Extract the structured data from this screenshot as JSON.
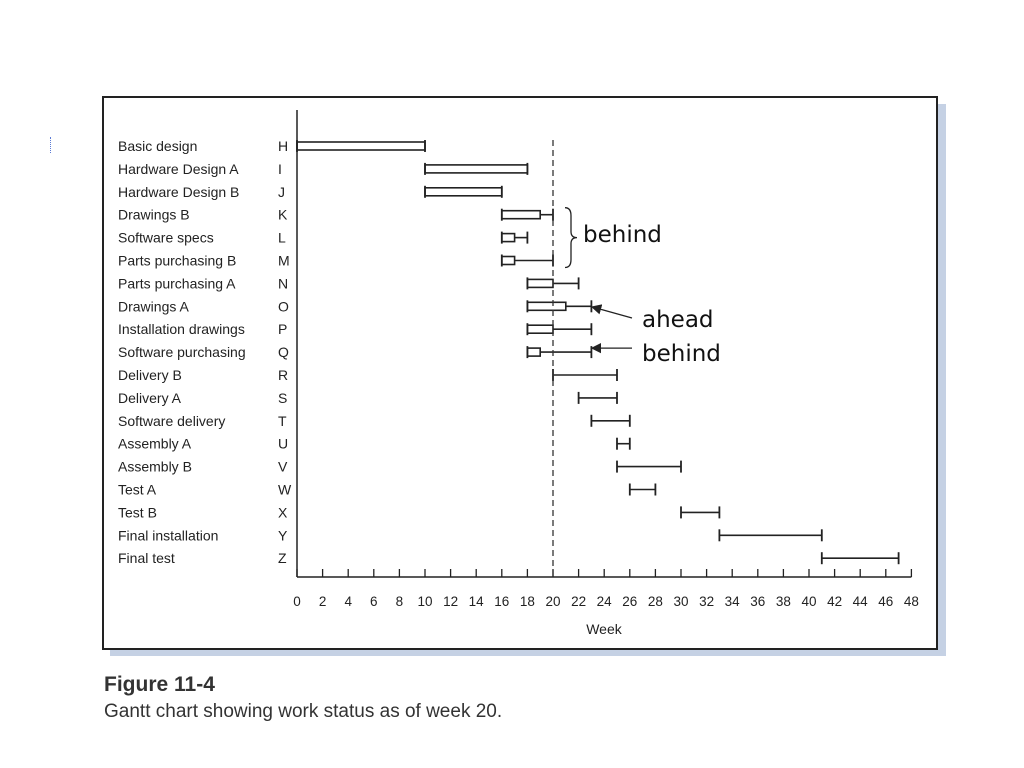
{
  "chart_data": {
    "type": "gantt",
    "xlabel": "Week",
    "xlim": [
      0,
      48
    ],
    "x_ticks": [
      0,
      2,
      4,
      6,
      8,
      10,
      12,
      14,
      16,
      18,
      20,
      22,
      24,
      26,
      28,
      30,
      32,
      34,
      36,
      38,
      40,
      42,
      44,
      46,
      48
    ],
    "status_line_week": 20,
    "tasks": [
      {
        "name": "Basic design",
        "code": "H",
        "start": 0,
        "end": 10,
        "progress_end": 10
      },
      {
        "name": "Hardware Design A",
        "code": "I",
        "start": 10,
        "end": 18,
        "progress_end": 18
      },
      {
        "name": "Hardware Design B",
        "code": "J",
        "start": 10,
        "end": 16,
        "progress_end": 16
      },
      {
        "name": "Drawings B",
        "code": "K",
        "start": 16,
        "end": 20,
        "progress_end": 19
      },
      {
        "name": "Software specs",
        "code": "L",
        "start": 16,
        "end": 18,
        "progress_end": 17
      },
      {
        "name": "Parts purchasing B",
        "code": "M",
        "start": 16,
        "end": 20,
        "progress_end": 17
      },
      {
        "name": "Parts purchasing A",
        "code": "N",
        "start": 18,
        "end": 22,
        "progress_end": 20
      },
      {
        "name": "Drawings A",
        "code": "O",
        "start": 18,
        "end": 23,
        "progress_end": 21
      },
      {
        "name": "Installation drawings",
        "code": "P",
        "start": 18,
        "end": 23,
        "progress_end": 20
      },
      {
        "name": "Software purchasing",
        "code": "Q",
        "start": 18,
        "end": 23,
        "progress_end": 19
      },
      {
        "name": "Delivery B",
        "code": "R",
        "start": 20,
        "end": 25,
        "progress_end": null
      },
      {
        "name": "Delivery A",
        "code": "S",
        "start": 22,
        "end": 25,
        "progress_end": null
      },
      {
        "name": "Software delivery",
        "code": "T",
        "start": 23,
        "end": 26,
        "progress_end": null
      },
      {
        "name": "Assembly A",
        "code": "U",
        "start": 25,
        "end": 26,
        "progress_end": null
      },
      {
        "name": "Assembly B",
        "code": "V",
        "start": 25,
        "end": 30,
        "progress_end": null
      },
      {
        "name": "Test A",
        "code": "W",
        "start": 26,
        "end": 28,
        "progress_end": null
      },
      {
        "name": "Test B",
        "code": "X",
        "start": 30,
        "end": 33,
        "progress_end": null
      },
      {
        "name": "Final installation",
        "code": "Y",
        "start": 33,
        "end": 41,
        "progress_end": null
      },
      {
        "name": "Final test",
        "code": "Z",
        "start": 41,
        "end": 47,
        "progress_end": null
      }
    ],
    "annotations": [
      {
        "text": "behind",
        "target": "brace over K, L, M"
      },
      {
        "text": "ahead",
        "target": "O"
      },
      {
        "text": "behind",
        "target": "Q"
      }
    ]
  },
  "figure": {
    "number": "Figure 11-4",
    "caption": "Gantt chart showing work status as of week 20."
  },
  "annotations_text": {
    "brace_label": "behind",
    "ahead_label": "ahead",
    "behind_label": "behind"
  }
}
